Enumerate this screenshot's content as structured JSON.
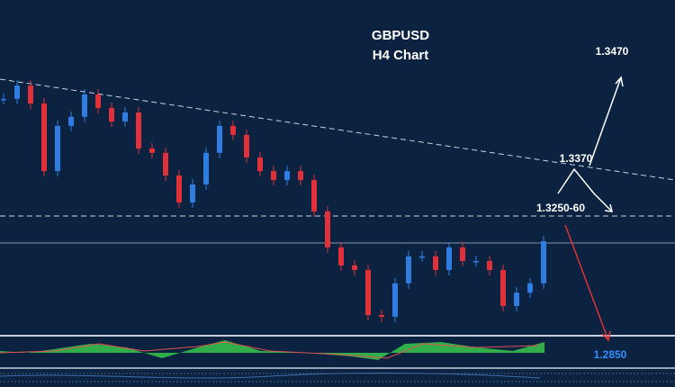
{
  "chart_data": {
    "type": "candlestick",
    "title": "GBPUSD",
    "subtitle": "H4 Chart",
    "values": [
      1.3631,
      1.3674,
      1.3616,
      1.3398,
      1.3544,
      1.3573,
      1.3645,
      1.3602,
      1.3558,
      1.3587,
      1.3471,
      1.3457,
      1.3384,
      1.3297,
      1.3355,
      1.3457,
      1.3544,
      1.3515,
      1.3442,
      1.3398,
      1.3369,
      1.3398,
      1.3369,
      1.3268,
      1.3152,
      1.3094,
      1.3079,
      1.2934,
      1.2928,
      1.3036,
      1.3123,
      1.3123,
      1.3079,
      1.3152,
      1.3108,
      1.3108,
      1.3079,
      1.2963,
      1.3006,
      1.3036,
      1.3172
    ],
    "up_color": "#2f7de1",
    "down_color": "#e0303a",
    "ylim": [
      1.287,
      1.395
    ],
    "annotations": [
      "1.3470",
      "1.3370",
      "1.3250-60",
      "1.2850"
    ]
  }
}
